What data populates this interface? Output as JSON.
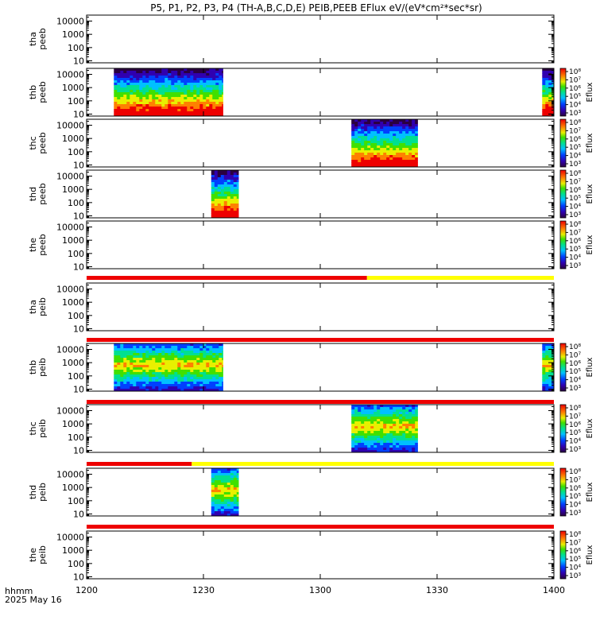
{
  "title": "P5, P1, P2, P3, P4 (TH-A,B,C,D,E) PEIB,PEEB EFlux eV/(eV*cm²*sec*sr)",
  "footer": {
    "axis_label": "hhmm",
    "date": "2025 May 16"
  },
  "colorbar_label": "Eflux",
  "chart_data": {
    "type": "heatmap",
    "x_range": [
      "12:00",
      "14:00"
    ],
    "x_ticks": [
      "1200",
      "1230",
      "1300",
      "1330",
      "1400"
    ],
    "y_scale": "log",
    "y_ticks": [
      "10",
      "100",
      "1000",
      "10000"
    ],
    "y_unit": "eV",
    "colorbar_scale": "log",
    "panels": [
      {
        "probe": "tha",
        "product": "peeb",
        "colorbar": false,
        "bursts": []
      },
      {
        "probe": "thb",
        "product": "peeb",
        "colorbar": true,
        "colorbar_ticks": [
          "10³",
          "10⁴",
          "10⁵",
          "10⁶",
          "10⁷",
          "10⁸"
        ],
        "bursts": [
          [
            "12:07",
            "12:35"
          ],
          [
            "13:57",
            "14:00"
          ]
        ]
      },
      {
        "probe": "thc",
        "product": "peeb",
        "colorbar": true,
        "colorbar_ticks": [
          "10³",
          "10⁴",
          "10⁵",
          "10⁶",
          "10⁷",
          "10⁸"
        ],
        "bursts": [
          [
            "13:08",
            "13:25"
          ]
        ]
      },
      {
        "probe": "thd",
        "product": "peeb",
        "colorbar": true,
        "colorbar_ticks": [
          "10³",
          "10⁴",
          "10⁵",
          "10⁶",
          "10⁷",
          "10⁸"
        ],
        "bursts": [
          [
            "12:32",
            "12:39"
          ]
        ]
      },
      {
        "probe": "the",
        "product": "peeb",
        "colorbar": true,
        "colorbar_ticks": [
          "10³",
          "10⁴",
          "10⁵",
          "10⁶",
          "10⁷",
          "10⁸"
        ],
        "bursts": []
      },
      {
        "probe": "tha",
        "product": "peib",
        "colorbar": false,
        "bursts": []
      },
      {
        "probe": "thb",
        "product": "peib",
        "colorbar": true,
        "colorbar_ticks": [
          "10³",
          "10⁴",
          "10⁵",
          "10⁶",
          "10⁷",
          "10⁸"
        ],
        "bursts": [
          [
            "12:07",
            "12:35"
          ],
          [
            "13:57",
            "14:00"
          ]
        ]
      },
      {
        "probe": "thc",
        "product": "peib",
        "colorbar": true,
        "colorbar_ticks": [
          "10³",
          "10⁴",
          "10⁵",
          "10⁶",
          "10⁷",
          "10⁸"
        ],
        "bursts": [
          [
            "13:08",
            "13:25"
          ]
        ]
      },
      {
        "probe": "thd",
        "product": "peib",
        "colorbar": true,
        "colorbar_ticks": [
          "10³",
          "10⁴",
          "10⁵",
          "10⁶",
          "10⁷",
          "10⁸"
        ],
        "bursts": [
          [
            "12:32",
            "12:39"
          ]
        ]
      },
      {
        "probe": "the",
        "product": "peib",
        "colorbar": true,
        "colorbar_ticks": [
          "10³",
          "10⁴",
          "10⁵",
          "10⁶",
          "10⁷",
          "10⁸"
        ],
        "bursts": []
      }
    ],
    "status_bars": [
      {
        "after_panel": 4,
        "segments": [
          {
            "from": "12:00",
            "to": "13:12",
            "color": "#ee0000"
          },
          {
            "from": "13:12",
            "to": "14:00",
            "color": "#ffff00"
          }
        ]
      },
      {
        "after_panel": 5,
        "segments": [
          {
            "from": "12:00",
            "to": "14:00",
            "color": "#ee0000"
          }
        ]
      },
      {
        "after_panel": 6,
        "segments": [
          {
            "from": "12:00",
            "to": "14:00",
            "color": "#ee0000"
          }
        ]
      },
      {
        "after_panel": 7,
        "segments": [
          {
            "from": "12:00",
            "to": "12:27",
            "color": "#ee0000"
          },
          {
            "from": "12:27",
            "to": "14:00",
            "color": "#ffff00"
          }
        ]
      },
      {
        "after_panel": 8,
        "segments": [
          {
            "from": "12:00",
            "to": "14:00",
            "color": "#ee0000"
          }
        ]
      }
    ]
  }
}
